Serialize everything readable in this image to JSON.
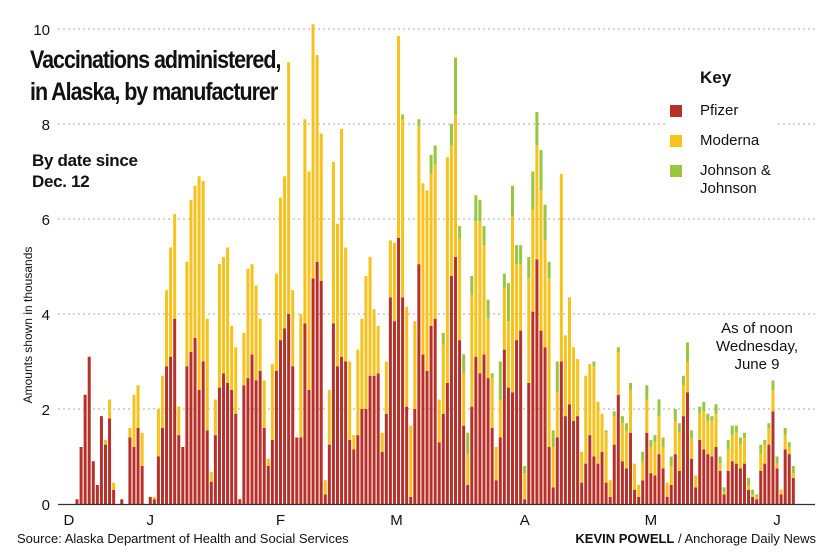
{
  "title_line1": "Vaccinations administered,",
  "title_line2": "in Alaska, by manufacturer",
  "subtitle_line1": "By date since",
  "subtitle_line2": "Dec. 12",
  "key": {
    "title": "Key",
    "items": [
      {
        "label": "Pfizer",
        "color": "#b8302a"
      },
      {
        "label": "Moderna",
        "color": "#f7c21b"
      },
      {
        "label": "Johnson &",
        "label2": "Johnson",
        "color": "#98c73f"
      }
    ]
  },
  "note_line1": "As of noon",
  "note_line2": "Wednesday,",
  "note_line3": "June 9",
  "source": "Source: Alaska Department of Health and Social Services",
  "credit_name": "KEVIN POWELL",
  "credit_org": " / Anchorage Daily News",
  "chart_data": {
    "type": "bar",
    "stacked": true,
    "title": "Vaccinations administered, in Alaska, by manufacturer",
    "subtitle": "By date since Dec. 12",
    "xlabel": "",
    "ylabel": "Amounts shown in thousands",
    "ylim": [
      0,
      10
    ],
    "yticks": [
      "0",
      "2",
      "4",
      "6",
      "8",
      "10"
    ],
    "grid": true,
    "legend": "top-right",
    "xticks": [
      {
        "label": "D",
        "day": -2
      },
      {
        "label": "J",
        "day": 18
      },
      {
        "label": "F",
        "day": 50
      },
      {
        "label": "M",
        "day": 78.5
      },
      {
        "label": "A",
        "day": 110
      },
      {
        "label": "M",
        "day": 141
      },
      {
        "label": "J",
        "day": 172
      }
    ],
    "series": [
      {
        "name": "Pfizer",
        "values": [
          0.1,
          1.2,
          2.3,
          3.1,
          0.9,
          0.4,
          1.85,
          1.25,
          1.8,
          0.3,
          0,
          0.1,
          0,
          1.4,
          1.2,
          1.6,
          0.8,
          0,
          0.15,
          0.1,
          1.0,
          1.6,
          2.9,
          3.1,
          3.9,
          1.45,
          1.2,
          2.9,
          3.2,
          3.5,
          2.4,
          3.0,
          1.55,
          0.47,
          1.45,
          2.45,
          2.75,
          2.55,
          2.4,
          1.9,
          0.1,
          2.5,
          2.65,
          3.15,
          2.6,
          2.8,
          1.6,
          0.8,
          1.35,
          2.8,
          3.45,
          3.7,
          4.0,
          2.9,
          1.4,
          1.4,
          3.8,
          2.4,
          4.75,
          5.1,
          4.7,
          0.2,
          1.25,
          3.8,
          2.9,
          3.1,
          3.0,
          1.35,
          1.15,
          1.45,
          2.0,
          2.0,
          2.7,
          2.7,
          2.75,
          1.1,
          1.9,
          4.35,
          3.85,
          5.6,
          4.35,
          2.05,
          0.15,
          2.0,
          5.05,
          3.15,
          2.8,
          3.75,
          3.9,
          1.3,
          1.9,
          2.55,
          4.8,
          5.2,
          3.45,
          1.65,
          0.4,
          2.05,
          3.1,
          2.75,
          3.15,
          2.65,
          1.6,
          0.5,
          1.4,
          3.25,
          2.45,
          2.35,
          3.45,
          3.65,
          0.1,
          2.55,
          4.05,
          5.15,
          3.65,
          3.3,
          1.2,
          0.35,
          1.4,
          3.0,
          1.85,
          2.1,
          1.75,
          1.85,
          0.45,
          0.85,
          1.45,
          1.0,
          0.85,
          1.1,
          0.45,
          0.15,
          1.25,
          2.3,
          0.9,
          0.75,
          1.5,
          0.3,
          0.15,
          0.5,
          1.5,
          0.65,
          0.6,
          1.05,
          0.75,
          0.15,
          0.4,
          1.05,
          0.7,
          1.85,
          2.35,
          0.95,
          0.35,
          1.35,
          1.15,
          1.05,
          1.0,
          1.2,
          0.7,
          0.2,
          0.7,
          0.9,
          0.85,
          0.75,
          0.85,
          0.3,
          0.15,
          0.1,
          0.7,
          0.85,
          1.25,
          1.95,
          0.75,
          0.2,
          1.15,
          1.05,
          0.55
        ]
      },
      {
        "name": "Moderna",
        "values": [
          0,
          0,
          0,
          0,
          0,
          0,
          0,
          0.1,
          0.4,
          0.15,
          0,
          0,
          0,
          0.2,
          1.1,
          0.9,
          0.7,
          0,
          0,
          0.05,
          1.0,
          1.1,
          1.6,
          2.3,
          2.2,
          0.6,
          0,
          2.2,
          3.2,
          3.2,
          4.5,
          3.8,
          2.35,
          0.2,
          0.75,
          2.6,
          2.45,
          2.85,
          1.35,
          1.4,
          0,
          1.1,
          2.3,
          1.9,
          2.0,
          1.1,
          1.0,
          0.15,
          1.6,
          2.05,
          3.0,
          3.2,
          5.3,
          1.6,
          0,
          2.6,
          4.3,
          4.6,
          5.35,
          4.35,
          3.1,
          0.3,
          1.15,
          3.4,
          3.0,
          4.8,
          2.4,
          1.65,
          0.3,
          1.8,
          1.9,
          2.8,
          2.5,
          1.4,
          1.0,
          0.4,
          1.1,
          1.2,
          1.65,
          4.25,
          3.75,
          2.1,
          1.5,
          1.85,
          2.9,
          3.6,
          3.8,
          3.2,
          3.25,
          0.9,
          1.45,
          4.75,
          2.75,
          3.0,
          2.15,
          1.1,
          0.65,
          2.35,
          2.85,
          3.2,
          2.3,
          1.25,
          1.05,
          0.7,
          0.8,
          1.3,
          1.4,
          3.7,
          1.6,
          1.4,
          0.55,
          2.2,
          2.15,
          2.4,
          2.95,
          2.25,
          3.55,
          0.85,
          0.95,
          3.95,
          1.7,
          2.25,
          1.55,
          1.2,
          0.65,
          1.85,
          1.5,
          1.9,
          1.3,
          0.8,
          1.05,
          0.35,
          0.6,
          0.9,
          0.8,
          0.8,
          0.9,
          0.55,
          0.25,
          0.4,
          0.7,
          0.55,
          0.7,
          0.8,
          0.45,
          0.3,
          0.4,
          0.7,
          0.8,
          0.65,
          0.65,
          0.45,
          0.25,
          0.55,
          0.8,
          0.7,
          0.75,
          0.7,
          0.15,
          0.05,
          0.45,
          0.55,
          0.65,
          0.5,
          0.55,
          0.1,
          0.05,
          0.05,
          0.35,
          0.4,
          0.35,
          0.45,
          0.1,
          0.1,
          0.3,
          0.15,
          0.1
        ]
      },
      {
        "name": "Johnson & Johnson",
        "values": [
          0,
          0,
          0,
          0,
          0,
          0,
          0,
          0,
          0,
          0,
          0,
          0,
          0,
          0,
          0,
          0,
          0,
          0,
          0,
          0,
          0,
          0,
          0,
          0,
          0,
          0,
          0,
          0,
          0,
          0,
          0,
          0,
          0,
          0,
          0,
          0,
          0,
          0,
          0,
          0,
          0,
          0,
          0,
          0,
          0,
          0,
          0,
          0,
          0,
          0,
          0,
          0,
          0,
          0,
          0,
          0,
          0,
          0,
          0,
          0,
          0,
          0,
          0,
          0,
          0,
          0,
          0,
          0,
          0,
          0,
          0,
          0,
          0,
          0,
          0,
          0,
          0,
          0,
          0,
          0,
          0.1,
          0,
          0,
          0,
          0.15,
          0,
          0,
          0.4,
          0.4,
          0,
          0.25,
          0,
          0.45,
          1.2,
          0.25,
          0.4,
          0.45,
          0.4,
          0.55,
          0.45,
          0.4,
          0.4,
          0.1,
          0,
          0.8,
          0.3,
          0.8,
          0.65,
          0.4,
          0.4,
          0.15,
          0.45,
          0.8,
          0.7,
          0.85,
          0.75,
          0.35,
          0.35,
          0.65,
          0,
          0,
          0,
          0,
          0,
          0,
          0,
          0,
          0.1,
          0,
          0,
          0.05,
          0,
          0.1,
          0.1,
          0.15,
          0.15,
          0.15,
          0,
          0,
          0.2,
          0.3,
          0.15,
          0.15,
          0.35,
          0.2,
          0,
          0.2,
          0.25,
          0.2,
          0.2,
          0.4,
          0.15,
          0,
          0.15,
          0.2,
          0.15,
          0.1,
          0.2,
          0.15,
          0.1,
          0.2,
          0.2,
          0.15,
          0.15,
          0.1,
          0.15,
          0.1,
          0.05,
          0.2,
          0.1,
          0.1,
          0.2,
          0.15,
          0,
          0.15,
          0.1,
          0.15
        ]
      }
    ]
  }
}
